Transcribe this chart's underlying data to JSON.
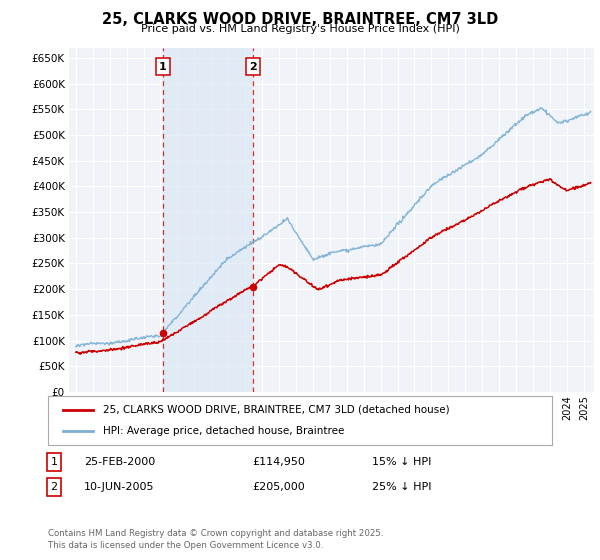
{
  "title": "25, CLARKS WOOD DRIVE, BRAINTREE, CM7 3LD",
  "subtitle": "Price paid vs. HM Land Registry's House Price Index (HPI)",
  "ylim": [
    0,
    670000
  ],
  "yticks": [
    0,
    50000,
    100000,
    150000,
    200000,
    250000,
    300000,
    350000,
    400000,
    450000,
    500000,
    550000,
    600000,
    650000
  ],
  "xlim_start": 1994.6,
  "xlim_end": 2025.6,
  "background_color": "#ffffff",
  "plot_bg_color": "#f0f4f8",
  "grid_color": "#ffffff",
  "hpi_color": "#7bafd4",
  "price_color": "#cc0000",
  "shade_color": "#dce8f5",
  "sale1_date": 2000.14,
  "sale1_price": 114950,
  "sale2_date": 2005.44,
  "sale2_price": 205000,
  "legend_entry1": "25, CLARKS WOOD DRIVE, BRAINTREE, CM7 3LD (detached house)",
  "legend_entry2": "HPI: Average price, detached house, Braintree",
  "copyright": "Contains HM Land Registry data © Crown copyright and database right 2025.\nThis data is licensed under the Open Government Licence v3.0."
}
